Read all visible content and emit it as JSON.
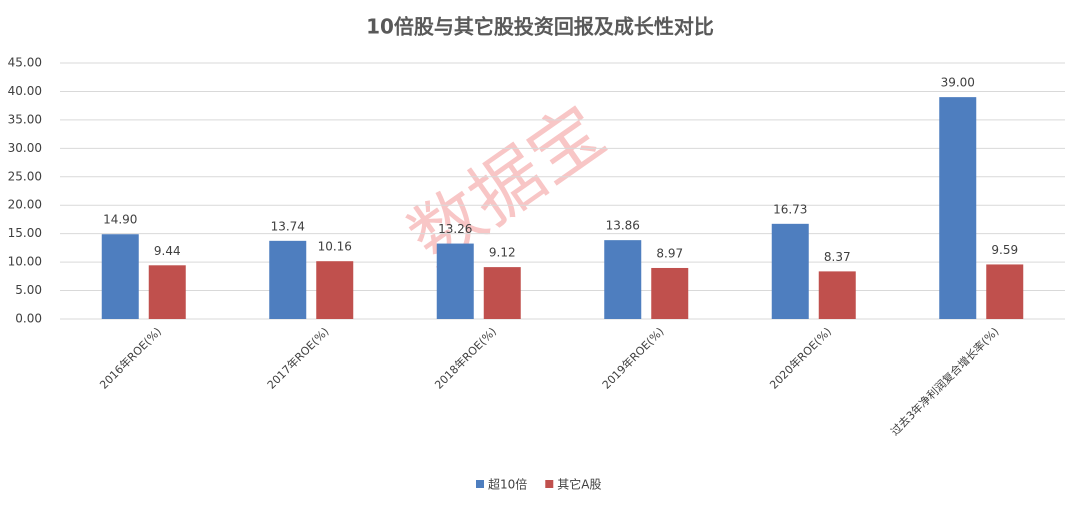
{
  "chart_data": {
    "type": "bar",
    "title": "10倍股与其它股投资回报及成长性对比",
    "watermark": "数据宝",
    "categories": [
      "2016年ROE(%)",
      "2017年ROE(%)",
      "2018年ROE(%)",
      "2019年ROE(%)",
      "2020年ROE(%)",
      "过去3年净利润复合增长率(%)"
    ],
    "series": [
      {
        "name": "超10倍",
        "color": "#4e7ebf",
        "values": [
          14.9,
          13.74,
          13.26,
          13.86,
          16.73,
          39.0
        ],
        "value_labels": [
          "14.90",
          "13.74",
          "13.26",
          "13.86",
          "16.73",
          "39.00"
        ]
      },
      {
        "name": "其它A股",
        "color": "#c0504d",
        "values": [
          9.44,
          10.16,
          9.12,
          8.97,
          8.37,
          9.59
        ],
        "value_labels": [
          "9.44",
          "10.16",
          "9.12",
          "8.97",
          "8.37",
          "9.59"
        ]
      }
    ],
    "ylim": [
      0,
      45
    ],
    "yticks": [
      {
        "value": 0,
        "label": "0.00"
      },
      {
        "value": 5,
        "label": "5.00"
      },
      {
        "value": 10,
        "label": "10.00"
      },
      {
        "value": 15,
        "label": "15.00"
      },
      {
        "value": 20,
        "label": "20.00"
      },
      {
        "value": 25,
        "label": "25.00"
      },
      {
        "value": 30,
        "label": "30.00"
      },
      {
        "value": 35,
        "label": "35.00"
      },
      {
        "value": 40,
        "label": "40.00"
      },
      {
        "value": 45,
        "label": "45.00"
      }
    ],
    "grid": true,
    "legend": "bottom"
  }
}
